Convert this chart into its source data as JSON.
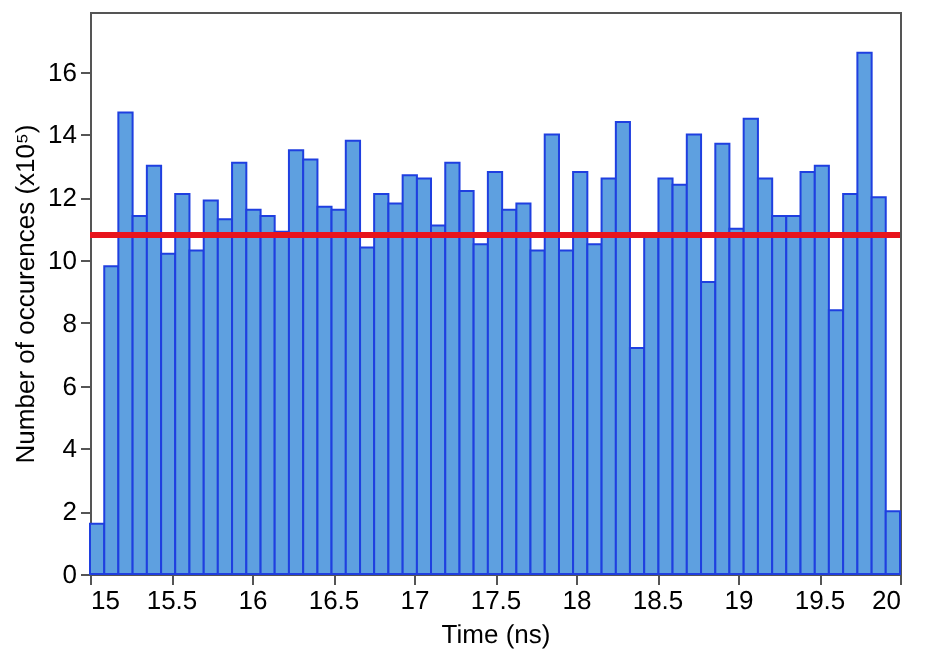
{
  "chart_data": {
    "type": "histogram",
    "xlabel": "Time (ns)",
    "ylabel": "Number of occurences (x10⁵)",
    "bins": [
      15,
      15.088,
      15.175,
      15.263,
      15.351,
      15.439,
      15.526,
      15.614,
      15.702,
      15.789,
      15.877,
      15.965,
      16.053,
      16.14,
      16.228,
      16.316,
      16.404,
      16.491,
      16.579,
      16.667,
      16.754,
      16.842,
      16.93,
      17.018,
      17.105,
      17.193,
      17.281,
      17.368,
      17.456,
      17.544,
      17.632,
      17.719,
      17.807,
      17.895,
      17.982,
      18.07,
      18.158,
      18.246,
      18.333,
      18.421,
      18.509,
      18.596,
      18.684,
      18.772,
      18.86,
      18.947,
      19.035,
      19.123,
      19.211,
      19.298,
      19.386,
      19.474,
      19.561,
      19.649,
      19.737,
      19.825,
      19.912,
      20
    ],
    "values": [
      1.6,
      9.8,
      14.7,
      11.4,
      13.0,
      10.2,
      12.1,
      10.3,
      11.9,
      11.3,
      13.1,
      11.6,
      11.4,
      10.9,
      13.5,
      13.2,
      11.7,
      11.6,
      13.8,
      10.4,
      12.1,
      11.8,
      12.7,
      12.6,
      11.1,
      13.1,
      12.2,
      10.5,
      12.8,
      11.6,
      11.8,
      10.3,
      14.0,
      10.3,
      12.8,
      10.5,
      12.6,
      14.4,
      7.2,
      10.8,
      12.6,
      12.4,
      14.0,
      9.3,
      13.7,
      11.0,
      14.5,
      12.6,
      11.4,
      11.4,
      12.8,
      13.0,
      8.4,
      12.1,
      16.6,
      12.0,
      2.0
    ],
    "color": "#5ea0e0",
    "xlim": [
      15,
      20
    ],
    "xticks": [
      15,
      15.5,
      16,
      16.5,
      17,
      17.5,
      18,
      18.5,
      19,
      19.5,
      20
    ],
    "ylim": [
      0,
      17.9
    ],
    "yticks": [
      0,
      2,
      4,
      6,
      8,
      10,
      12,
      14,
      16
    ],
    "ref_lines": [
      {
        "axis": "y",
        "value": 10.8,
        "color": "#e8141c"
      }
    ],
    "grid": false
  }
}
